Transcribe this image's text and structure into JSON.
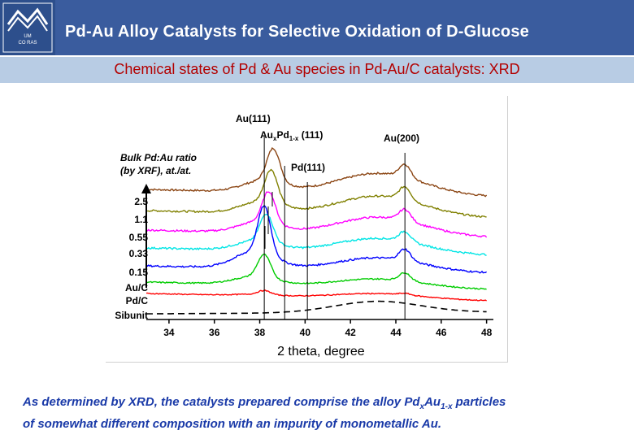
{
  "header": {
    "title": "Pd-Au Alloy Catalysts for Selective Oxidation of D-Glucose",
    "logo_lines": [
      "UM",
      "CO RAS"
    ],
    "bg_color": "#3a5c9e",
    "title_color": "#ffffff"
  },
  "subtitle": {
    "text": "Chemical states of Pd & Au species in Pd-Au/C catalysts: XRD",
    "color": "#b30000",
    "bg_color": "#b8cce4"
  },
  "chart_data": {
    "type": "line",
    "xlabel": "2 theta, degree",
    "ylabel": "",
    "xlim": [
      33,
      48.3
    ],
    "x_ticks": [
      34,
      36,
      38,
      40,
      42,
      44,
      46,
      48
    ],
    "y_axis_note": [
      "Bulk Pd:Au ratio",
      "(by XRF), at./at."
    ],
    "grid": false,
    "series": [
      {
        "name": "2.5",
        "color": "#8b4513",
        "dashed": false
      },
      {
        "name": "1.1",
        "color": "#808000",
        "dashed": false
      },
      {
        "name": "0.55",
        "color": "#ff00ff",
        "dashed": false
      },
      {
        "name": "0.33",
        "color": "#00e5e5",
        "dashed": false
      },
      {
        "name": "0.15",
        "color": "#0000ff",
        "dashed": false
      },
      {
        "name": "Au/C",
        "color": "#00cc00",
        "dashed": false
      },
      {
        "name": "Pd/C",
        "color": "#ff0000",
        "dashed": false
      },
      {
        "name": "Sibunit",
        "color": "#000000",
        "dashed": true
      }
    ],
    "peaks": [
      {
        "position": 38.2,
        "label": "Au(111)"
      },
      {
        "position": 39.1,
        "label_parts": [
          "Au",
          "x",
          "Pd",
          "1-x",
          " (111)"
        ]
      },
      {
        "position": 40.1,
        "label": "Pd(111)"
      },
      {
        "position": 44.4,
        "label": "Au(200)"
      }
    ]
  },
  "caption": {
    "line1_a": "As determined by XRD, the catalysts prepared comprise the alloy Pd",
    "line1_sub1": "x",
    "line1_b": "Au",
    "line1_sub2": "1-x",
    "line1_c": " particles",
    "line2": "of somewhat different composition with an impurity of monometallic Au.",
    "color": "#1a3aa8"
  }
}
